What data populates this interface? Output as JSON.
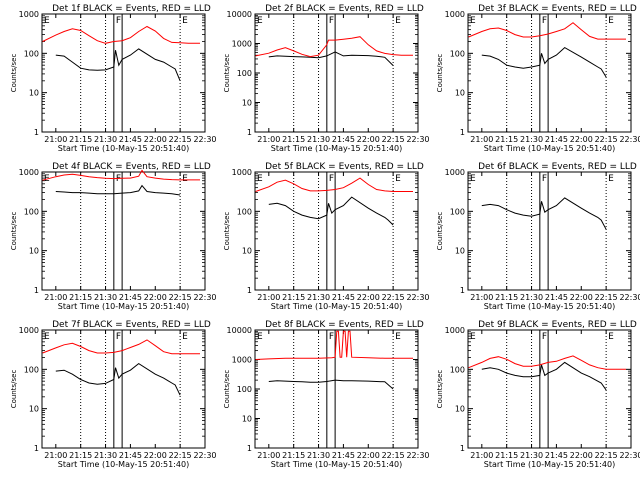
{
  "colors": {
    "events": "#000000",
    "lld": "#ff0000",
    "axis": "#000000"
  },
  "shared": {
    "xlabel": "Start Time (10-May-15 20:51:40)",
    "ylabel": "Counts/sec",
    "x_ticks": [
      "21:00",
      "21:15",
      "21:30",
      "21:45",
      "22:00",
      "22:15",
      "22:30"
    ],
    "x_range": [
      "20:51:40",
      "22:30"
    ],
    "y_scale": "log",
    "y_ticks": [
      "1",
      "10",
      "100",
      "1000"
    ],
    "marker_labels": {
      "E1": "E",
      "F": "F",
      "E2": "E"
    },
    "dotted_lines_at": [
      "21:15",
      "21:30",
      "22:15"
    ],
    "solid_lines_at": [
      "21:35",
      "21:40"
    ]
  },
  "chart_data": [
    {
      "type": "line",
      "title": "Det 1f BLACK = Events, RED = LLD",
      "xlabel": "Start Time (10-May-15 20:51:40)",
      "ylabel": "Counts/sec",
      "y_scale": "log",
      "ylim": [
        1,
        1000
      ],
      "y_ticks": [
        "1",
        "10",
        "100",
        "1000"
      ],
      "series": [
        {
          "name": "Events",
          "color": "#000000",
          "x": [
            "21:00",
            "21:05",
            "21:10",
            "21:15",
            "21:20",
            "21:25",
            "21:30",
            "21:35",
            "21:36",
            "21:38",
            "21:40",
            "21:45",
            "21:50",
            "22:00",
            "22:05",
            "22:10",
            "22:12",
            "22:15"
          ],
          "y": [
            90,
            85,
            60,
            42,
            38,
            37,
            38,
            45,
            120,
            50,
            70,
            90,
            130,
            70,
            60,
            45,
            40,
            20
          ]
        },
        {
          "name": "LLD",
          "color": "#ff0000",
          "x": [
            "20:52",
            "21:00",
            "21:05",
            "21:10",
            "21:15",
            "21:20",
            "21:25",
            "21:30",
            "21:35",
            "21:40",
            "21:45",
            "21:50",
            "21:55",
            "22:00",
            "22:05",
            "22:10",
            "22:15",
            "22:20",
            "22:25",
            "22:27"
          ],
          "y": [
            200,
            290,
            360,
            420,
            380,
            280,
            210,
            180,
            200,
            210,
            250,
            360,
            480,
            370,
            240,
            190,
            185,
            180,
            180,
            180
          ]
        }
      ]
    },
    {
      "type": "line",
      "title": "Det 2f BLACK = Events, RED = LLD",
      "xlabel": "Start Time (10-May-15 20:51:40)",
      "ylabel": "Counts/sec",
      "y_scale": "log",
      "ylim": [
        1,
        10000
      ],
      "y_ticks": [
        "1",
        "10",
        "100",
        "1000",
        "10000"
      ],
      "series": [
        {
          "name": "Events",
          "color": "#000000",
          "x": [
            "21:00",
            "21:05",
            "21:10",
            "21:15",
            "21:20",
            "21:25",
            "21:30",
            "21:35",
            "21:40",
            "21:45",
            "21:50",
            "22:00",
            "22:05",
            "22:10",
            "22:15"
          ],
          "y": [
            350,
            380,
            370,
            360,
            350,
            340,
            330,
            380,
            520,
            380,
            400,
            390,
            370,
            340,
            180
          ]
        },
        {
          "name": "LLD",
          "color": "#ff0000",
          "x": [
            "20:52",
            "21:00",
            "21:05",
            "21:10",
            "21:15",
            "21:20",
            "21:25",
            "21:30",
            "21:35",
            "21:36",
            "21:40",
            "21:45",
            "21:50",
            "21:55",
            "22:00",
            "22:05",
            "22:10",
            "22:15",
            "22:20",
            "22:25",
            "22:27"
          ],
          "y": [
            380,
            470,
            600,
            720,
            560,
            430,
            360,
            400,
            900,
            1300,
            1300,
            1400,
            1500,
            1700,
            900,
            560,
            460,
            420,
            400,
            400,
            400
          ]
        }
      ]
    },
    {
      "type": "line",
      "title": "Det 3f BLACK = Events, RED = LLD",
      "xlabel": "Start Time (10-May-15 20:51:40)",
      "ylabel": "Counts/sec",
      "y_scale": "log",
      "ylim": [
        1,
        1000
      ],
      "y_ticks": [
        "1",
        "10",
        "100",
        "1000"
      ],
      "series": [
        {
          "name": "Events",
          "color": "#000000",
          "x": [
            "21:00",
            "21:05",
            "21:10",
            "21:15",
            "21:20",
            "21:25",
            "21:30",
            "21:35",
            "21:36",
            "21:38",
            "21:40",
            "21:45",
            "21:50",
            "22:00",
            "22:05",
            "22:10",
            "22:12",
            "22:15"
          ],
          "y": [
            90,
            85,
            70,
            50,
            45,
            42,
            45,
            50,
            100,
            55,
            70,
            90,
            140,
            80,
            60,
            45,
            40,
            25
          ]
        },
        {
          "name": "LLD",
          "color": "#ff0000",
          "x": [
            "20:52",
            "21:00",
            "21:05",
            "21:10",
            "21:15",
            "21:20",
            "21:25",
            "21:30",
            "21:35",
            "21:40",
            "21:45",
            "21:50",
            "21:55",
            "22:00",
            "22:05",
            "22:10",
            "22:15",
            "22:20",
            "22:25",
            "22:27"
          ],
          "y": [
            260,
            360,
            420,
            440,
            380,
            300,
            260,
            260,
            280,
            310,
            360,
            420,
            600,
            400,
            270,
            230,
            230,
            230,
            230,
            230
          ]
        }
      ]
    },
    {
      "type": "line",
      "title": "Det 4f BLACK = Events, RED = LLD",
      "xlabel": "Start Time (10-May-15 20:51:40)",
      "ylabel": "Counts/sec",
      "y_scale": "log",
      "ylim": [
        1,
        1000
      ],
      "y_ticks": [
        "1",
        "10",
        "100",
        "1000"
      ],
      "series": [
        {
          "name": "Events",
          "color": "#000000",
          "x": [
            "21:00",
            "21:05",
            "21:10",
            "21:15",
            "21:20",
            "21:25",
            "21:30",
            "21:35",
            "21:40",
            "21:45",
            "21:50",
            "21:52",
            "21:55",
            "22:00",
            "22:05",
            "22:10",
            "22:15"
          ],
          "y": [
            320,
            310,
            300,
            300,
            290,
            280,
            280,
            280,
            290,
            300,
            330,
            450,
            320,
            300,
            290,
            280,
            260
          ]
        },
        {
          "name": "LLD",
          "color": "#ff0000",
          "x": [
            "20:52",
            "21:00",
            "21:05",
            "21:10",
            "21:15",
            "21:20",
            "21:25",
            "21:30",
            "21:35",
            "21:40",
            "21:45",
            "21:50",
            "21:52",
            "21:55",
            "22:00",
            "22:05",
            "22:10",
            "22:15",
            "22:20",
            "22:25",
            "22:27"
          ],
          "y": [
            620,
            760,
            840,
            880,
            820,
            760,
            720,
            690,
            680,
            690,
            700,
            780,
            1100,
            760,
            700,
            660,
            640,
            630,
            630,
            630,
            630
          ]
        }
      ]
    },
    {
      "type": "line",
      "title": "Det 5f BLACK = Events, RED = LLD",
      "xlabel": "Start Time (10-May-15 20:51:40)",
      "ylabel": "Counts/sec",
      "y_scale": "log",
      "ylim": [
        1,
        1000
      ],
      "y_ticks": [
        "1",
        "10",
        "100",
        "1000"
      ],
      "series": [
        {
          "name": "Events",
          "color": "#000000",
          "x": [
            "21:00",
            "21:05",
            "21:10",
            "21:15",
            "21:20",
            "21:25",
            "21:30",
            "21:35",
            "21:36",
            "21:38",
            "21:40",
            "21:45",
            "21:50",
            "22:00",
            "22:05",
            "22:10",
            "22:12",
            "22:15"
          ],
          "y": [
            150,
            160,
            140,
            100,
            80,
            70,
            65,
            80,
            160,
            90,
            110,
            140,
            230,
            120,
            90,
            70,
            60,
            45
          ]
        },
        {
          "name": "LLD",
          "color": "#ff0000",
          "x": [
            "20:52",
            "21:00",
            "21:05",
            "21:10",
            "21:15",
            "21:20",
            "21:25",
            "21:30",
            "21:35",
            "21:40",
            "21:45",
            "21:50",
            "21:55",
            "22:00",
            "22:05",
            "22:10",
            "22:15",
            "22:20",
            "22:25",
            "22:27"
          ],
          "y": [
            320,
            420,
            550,
            620,
            500,
            380,
            330,
            330,
            340,
            360,
            400,
            520,
            700,
            480,
            360,
            330,
            320,
            320,
            320,
            320
          ]
        }
      ]
    },
    {
      "type": "line",
      "title": "Det 6f BLACK = Events, RED = LLD",
      "xlabel": "Start Time (10-May-15 20:51:40)",
      "ylabel": "Counts/sec",
      "y_scale": "log",
      "ylim": [
        1,
        1000
      ],
      "y_ticks": [
        "1",
        "10",
        "100",
        "1000"
      ],
      "series": [
        {
          "name": "Events",
          "color": "#000000",
          "x": [
            "21:00",
            "21:05",
            "21:10",
            "21:15",
            "21:20",
            "21:25",
            "21:30",
            "21:35",
            "21:36",
            "21:38",
            "21:40",
            "21:45",
            "21:50",
            "22:00",
            "22:05",
            "22:10",
            "22:12",
            "22:15"
          ],
          "y": [
            140,
            150,
            140,
            110,
            90,
            80,
            75,
            85,
            180,
            95,
            110,
            140,
            220,
            120,
            90,
            70,
            60,
            35
          ]
        }
      ]
    },
    {
      "type": "line",
      "title": "Det 7f BLACK = Events, RED = LLD",
      "xlabel": "Start Time (10-May-15 20:51:40)",
      "ylabel": "Counts/sec",
      "y_scale": "log",
      "ylim": [
        1,
        1000
      ],
      "y_ticks": [
        "1",
        "10",
        "100",
        "1000"
      ],
      "series": [
        {
          "name": "Events",
          "color": "#000000",
          "x": [
            "21:00",
            "21:05",
            "21:10",
            "21:15",
            "21:20",
            "21:25",
            "21:30",
            "21:35",
            "21:36",
            "21:38",
            "21:40",
            "21:45",
            "21:50",
            "22:00",
            "22:05",
            "22:10",
            "22:12",
            "22:15"
          ],
          "y": [
            90,
            95,
            75,
            55,
            45,
            42,
            44,
            55,
            110,
            60,
            75,
            95,
            140,
            75,
            60,
            45,
            40,
            22
          ]
        },
        {
          "name": "LLD",
          "color": "#ff0000",
          "x": [
            "20:52",
            "21:00",
            "21:05",
            "21:10",
            "21:15",
            "21:20",
            "21:25",
            "21:30",
            "21:35",
            "21:40",
            "21:45",
            "21:50",
            "21:55",
            "22:00",
            "22:05",
            "22:10",
            "22:15",
            "22:20",
            "22:25",
            "22:27"
          ],
          "y": [
            260,
            350,
            420,
            460,
            380,
            300,
            260,
            260,
            270,
            300,
            360,
            430,
            560,
            400,
            280,
            250,
            250,
            250,
            250,
            250
          ]
        }
      ]
    },
    {
      "type": "line",
      "title": "Det 8f BLACK = Events, RED = LLD",
      "xlabel": "Start Time (10-May-15 20:51:40)",
      "ylabel": "Counts/sec",
      "y_scale": "log",
      "ylim": [
        1,
        10000
      ],
      "y_ticks": [
        "1",
        "10",
        "100",
        "1000",
        "10000"
      ],
      "series": [
        {
          "name": "Events",
          "color": "#000000",
          "x": [
            "21:00",
            "21:05",
            "21:10",
            "21:15",
            "21:20",
            "21:25",
            "21:30",
            "21:35",
            "21:40",
            "21:45",
            "21:50",
            "22:00",
            "22:05",
            "22:10",
            "22:15"
          ],
          "y": [
            180,
            190,
            185,
            180,
            175,
            170,
            170,
            180,
            200,
            190,
            190,
            185,
            180,
            175,
            100
          ]
        },
        {
          "name": "LLD",
          "color": "#ff0000",
          "x": [
            "20:52",
            "21:00",
            "21:10",
            "21:20",
            "21:30",
            "21:38",
            "21:40",
            "21:41",
            "21:42",
            "21:43",
            "21:44",
            "21:45",
            "21:46",
            "21:47",
            "21:48",
            "21:49",
            "21:50",
            "22:00",
            "22:10",
            "22:20",
            "22:27"
          ],
          "y": [
            1000,
            1050,
            1100,
            1100,
            1100,
            1150,
            1200,
            9000,
            9000,
            1200,
            1200,
            9000,
            9000,
            1200,
            9000,
            9000,
            1200,
            1150,
            1100,
            1100,
            1100
          ]
        }
      ]
    },
    {
      "type": "line",
      "title": "Det 9f BLACK = Events, RED = LLD",
      "xlabel": "Start Time (10-May-15 20:51:40)",
      "ylabel": "Counts/sec",
      "y_scale": "log",
      "ylim": [
        1,
        1000
      ],
      "y_ticks": [
        "1",
        "10",
        "100",
        "1000"
      ],
      "series": [
        {
          "name": "Events",
          "color": "#000000",
          "x": [
            "21:00",
            "21:05",
            "21:10",
            "21:15",
            "21:20",
            "21:25",
            "21:30",
            "21:35",
            "21:36",
            "21:38",
            "21:40",
            "21:45",
            "21:50",
            "22:00",
            "22:05",
            "22:10",
            "22:12",
            "22:15"
          ],
          "y": [
            100,
            110,
            100,
            80,
            70,
            65,
            65,
            70,
            130,
            70,
            80,
            100,
            150,
            80,
            65,
            50,
            45,
            30
          ]
        },
        {
          "name": "LLD",
          "color": "#ff0000",
          "x": [
            "20:52",
            "21:00",
            "21:05",
            "21:10",
            "21:15",
            "21:20",
            "21:25",
            "21:30",
            "21:35",
            "21:40",
            "21:45",
            "21:50",
            "21:55",
            "22:00",
            "22:05",
            "22:10",
            "22:15",
            "22:20",
            "22:25",
            "22:27"
          ],
          "y": [
            110,
            150,
            190,
            210,
            180,
            140,
            120,
            120,
            130,
            150,
            160,
            190,
            220,
            170,
            130,
            110,
            100,
            100,
            100,
            100
          ]
        }
      ]
    }
  ]
}
